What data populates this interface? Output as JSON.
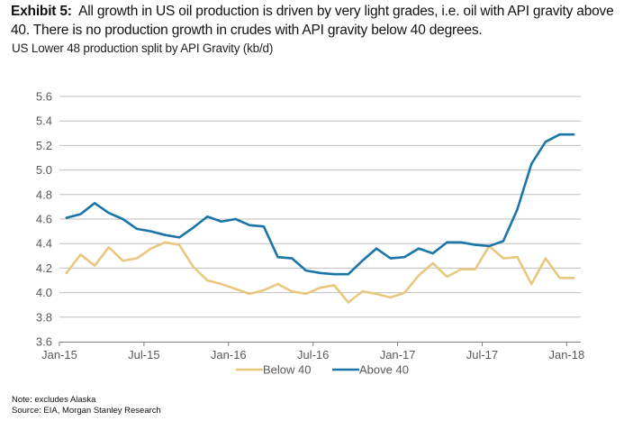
{
  "header": {
    "exhibit_label": "Exhibit 5:",
    "title_text": "All growth in US oil production is driven by very light grades, i.e. oil with API gravity above 40. There is no production growth in crudes with API gravity below 40 degrees.",
    "subtitle": "US Lower 48 production split by API Gravity (kb/d)"
  },
  "footer": {
    "note": "Note: excludes Alaska",
    "source": "Source: EIA, Morgan Stanley Research"
  },
  "chart_data": {
    "type": "line",
    "title": "US Lower 48 production split by API Gravity (kb/d)",
    "xlabel": "",
    "ylabel": "",
    "ylim": [
      3.6,
      5.6
    ],
    "yticks": [
      "3.6",
      "3.8",
      "4.0",
      "4.2",
      "4.4",
      "4.6",
      "4.8",
      "5.0",
      "5.2",
      "5.4",
      "5.6"
    ],
    "xtick_labels": [
      "Jan-15",
      "Jul-15",
      "Jan-16",
      "Jul-16",
      "Jan-17",
      "Jul-17",
      "Jan-18"
    ],
    "xtick_every_n_months": 6,
    "x": [
      "Jan-15",
      "Feb-15",
      "Mar-15",
      "Apr-15",
      "May-15",
      "Jun-15",
      "Jul-15",
      "Aug-15",
      "Sep-15",
      "Oct-15",
      "Nov-15",
      "Dec-15",
      "Jan-16",
      "Feb-16",
      "Mar-16",
      "Apr-16",
      "May-16",
      "Jun-16",
      "Jul-16",
      "Aug-16",
      "Sep-16",
      "Oct-16",
      "Nov-16",
      "Dec-16",
      "Jan-17",
      "Feb-17",
      "Mar-17",
      "Apr-17",
      "May-17",
      "Jun-17",
      "Jul-17",
      "Aug-17",
      "Sep-17",
      "Oct-17",
      "Nov-17",
      "Dec-17",
      "Jan-18"
    ],
    "grid": "horizontal",
    "legend_position": "bottom-center",
    "series": [
      {
        "name": "Below 40",
        "color": "#E8C77E",
        "values": [
          4.16,
          4.31,
          4.22,
          4.37,
          4.26,
          4.28,
          4.36,
          4.41,
          4.39,
          4.21,
          4.1,
          4.07,
          4.03,
          3.99,
          4.02,
          4.07,
          4.01,
          3.99,
          4.04,
          4.06,
          3.92,
          4.01,
          3.99,
          3.96,
          4.0,
          4.14,
          4.24,
          4.13,
          4.19,
          4.19,
          4.38,
          4.28,
          4.29,
          4.07,
          4.28,
          4.12,
          4.12
        ]
      },
      {
        "name": "Above 40",
        "color": "#1B75A8",
        "values": [
          4.61,
          4.64,
          4.73,
          4.65,
          4.6,
          4.52,
          4.5,
          4.47,
          4.45,
          4.53,
          4.62,
          4.58,
          4.6,
          4.55,
          4.54,
          4.29,
          4.28,
          4.18,
          4.16,
          4.15,
          4.15,
          4.26,
          4.36,
          4.28,
          4.29,
          4.36,
          4.32,
          4.41,
          4.41,
          4.39,
          4.38,
          4.42,
          4.68,
          5.05,
          5.23,
          5.29,
          5.29
        ]
      }
    ]
  }
}
